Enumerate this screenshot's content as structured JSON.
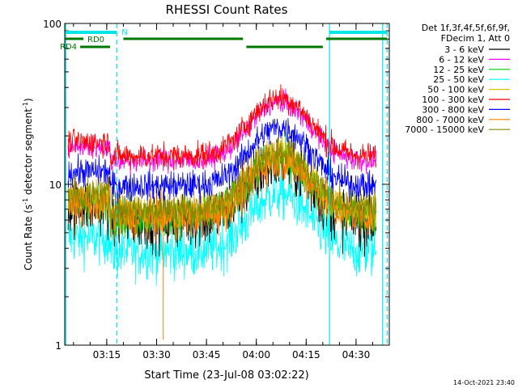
{
  "chart_data": {
    "type": "line",
    "title": "RHESSI Count Rates",
    "xlabel": "Start Time (23-Jul-08 03:02:22)",
    "ylabel_main": "Count Rate (s",
    "ylabel_sup1": "-1",
    "ylabel_mid": " detector segment",
    "ylabel_sup2": "-1",
    "ylabel_end": ")",
    "y_scale": "log",
    "ylim": [
      1,
      100
    ],
    "xlim": [
      "03:02:22",
      "04:40:00"
    ],
    "x_ticks": [
      "03:15",
      "03:30",
      "03:45",
      "04:00",
      "04:15",
      "04:30"
    ],
    "y_ticks": [
      "1",
      "10",
      "100"
    ],
    "legend_header": [
      "Det 1f,3f,4f,5f,6f,9f,",
      "FDecim 1, Att 0"
    ],
    "series": [
      {
        "name": "3 - 6 keV",
        "color": "#000000",
        "base": 6.0,
        "noise": 0.18
      },
      {
        "name": "6 - 12 keV",
        "color": "#ff00ff",
        "base": 14.0,
        "noise": 0.07
      },
      {
        "name": "12 - 25 keV",
        "color": "#00cc00",
        "base": 6.3,
        "noise": 0.12
      },
      {
        "name": "25 - 50 keV",
        "color": "#00ffff",
        "base": 3.8,
        "noise": 0.16
      },
      {
        "name": "50 - 100 keV",
        "color": "#e0c000",
        "base": 6.8,
        "noise": 0.11
      },
      {
        "name": "100 - 300 keV",
        "color": "#ff0000",
        "base": 15.0,
        "noise": 0.08
      },
      {
        "name": "300 - 800 keV",
        "color": "#0000ff",
        "base": 9.8,
        "noise": 0.09
      },
      {
        "name": "800 - 7000 keV",
        "color": "#ff8000",
        "base": 6.2,
        "noise": 0.13
      },
      {
        "name": "7000 - 15000 keV",
        "color": "#888800",
        "base": 7.0,
        "noise": 0.1
      }
    ],
    "flare_peak_time": "04:07",
    "flare_amplitude_factor": 2.3,
    "orbit_markers": {
      "N_label": "N",
      "RD0_label": "RD0",
      "RD4_label": "RD4"
    },
    "footer_timestamp": "14-Oct-2021 23:40"
  }
}
